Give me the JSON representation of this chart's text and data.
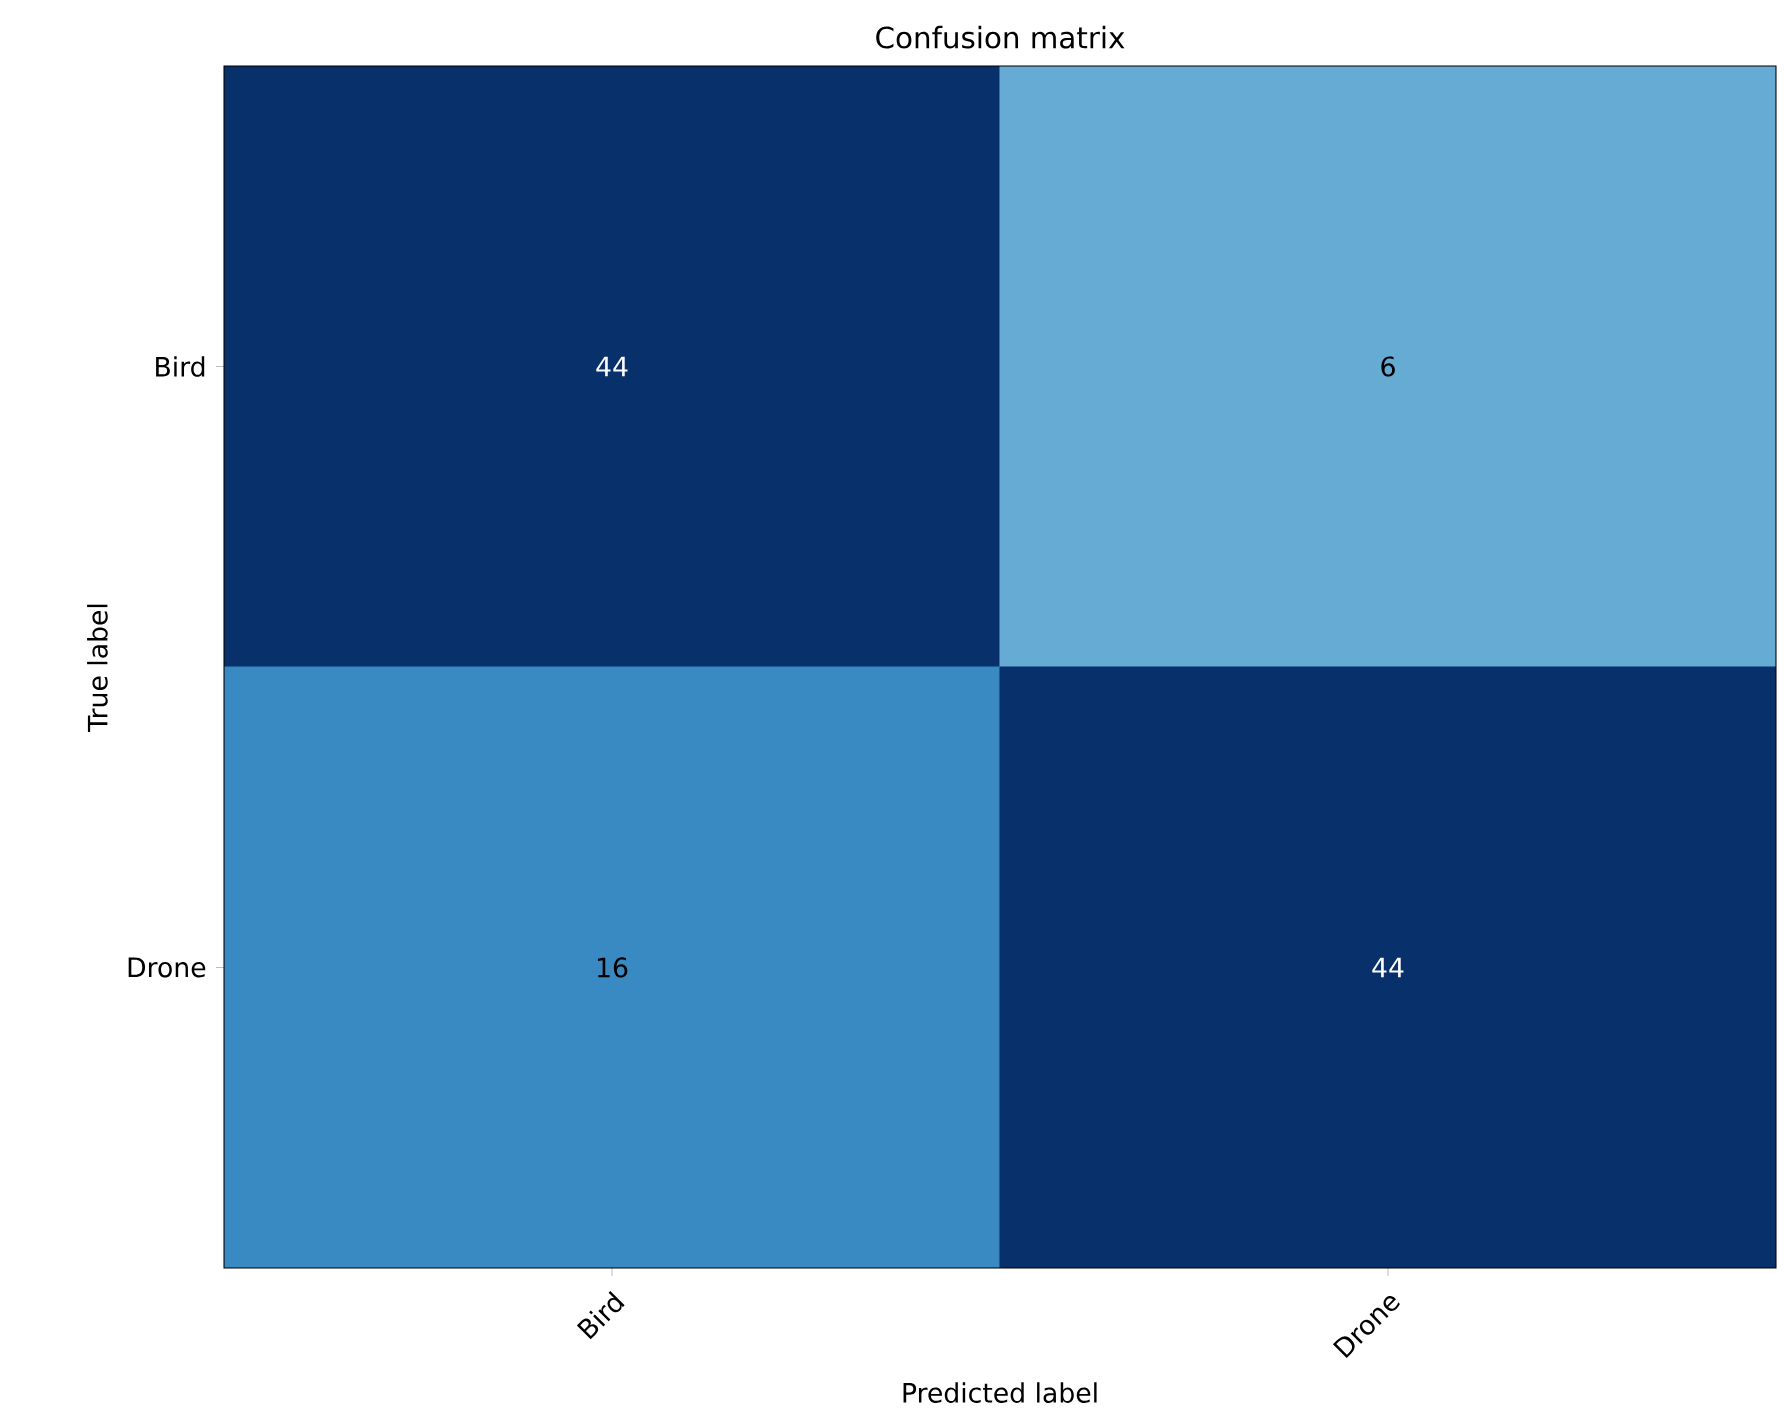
{
  "chart_data": {
    "type": "heatmap",
    "title": "Confusion matrix",
    "xlabel": "Predicted label",
    "ylabel": "True label",
    "categories": [
      "Bird",
      "Drone"
    ],
    "y_categories": [
      "Bird",
      "Drone"
    ],
    "cells": [
      [
        44,
        6
      ],
      [
        16,
        44
      ]
    ],
    "data_labels": true
  }
}
